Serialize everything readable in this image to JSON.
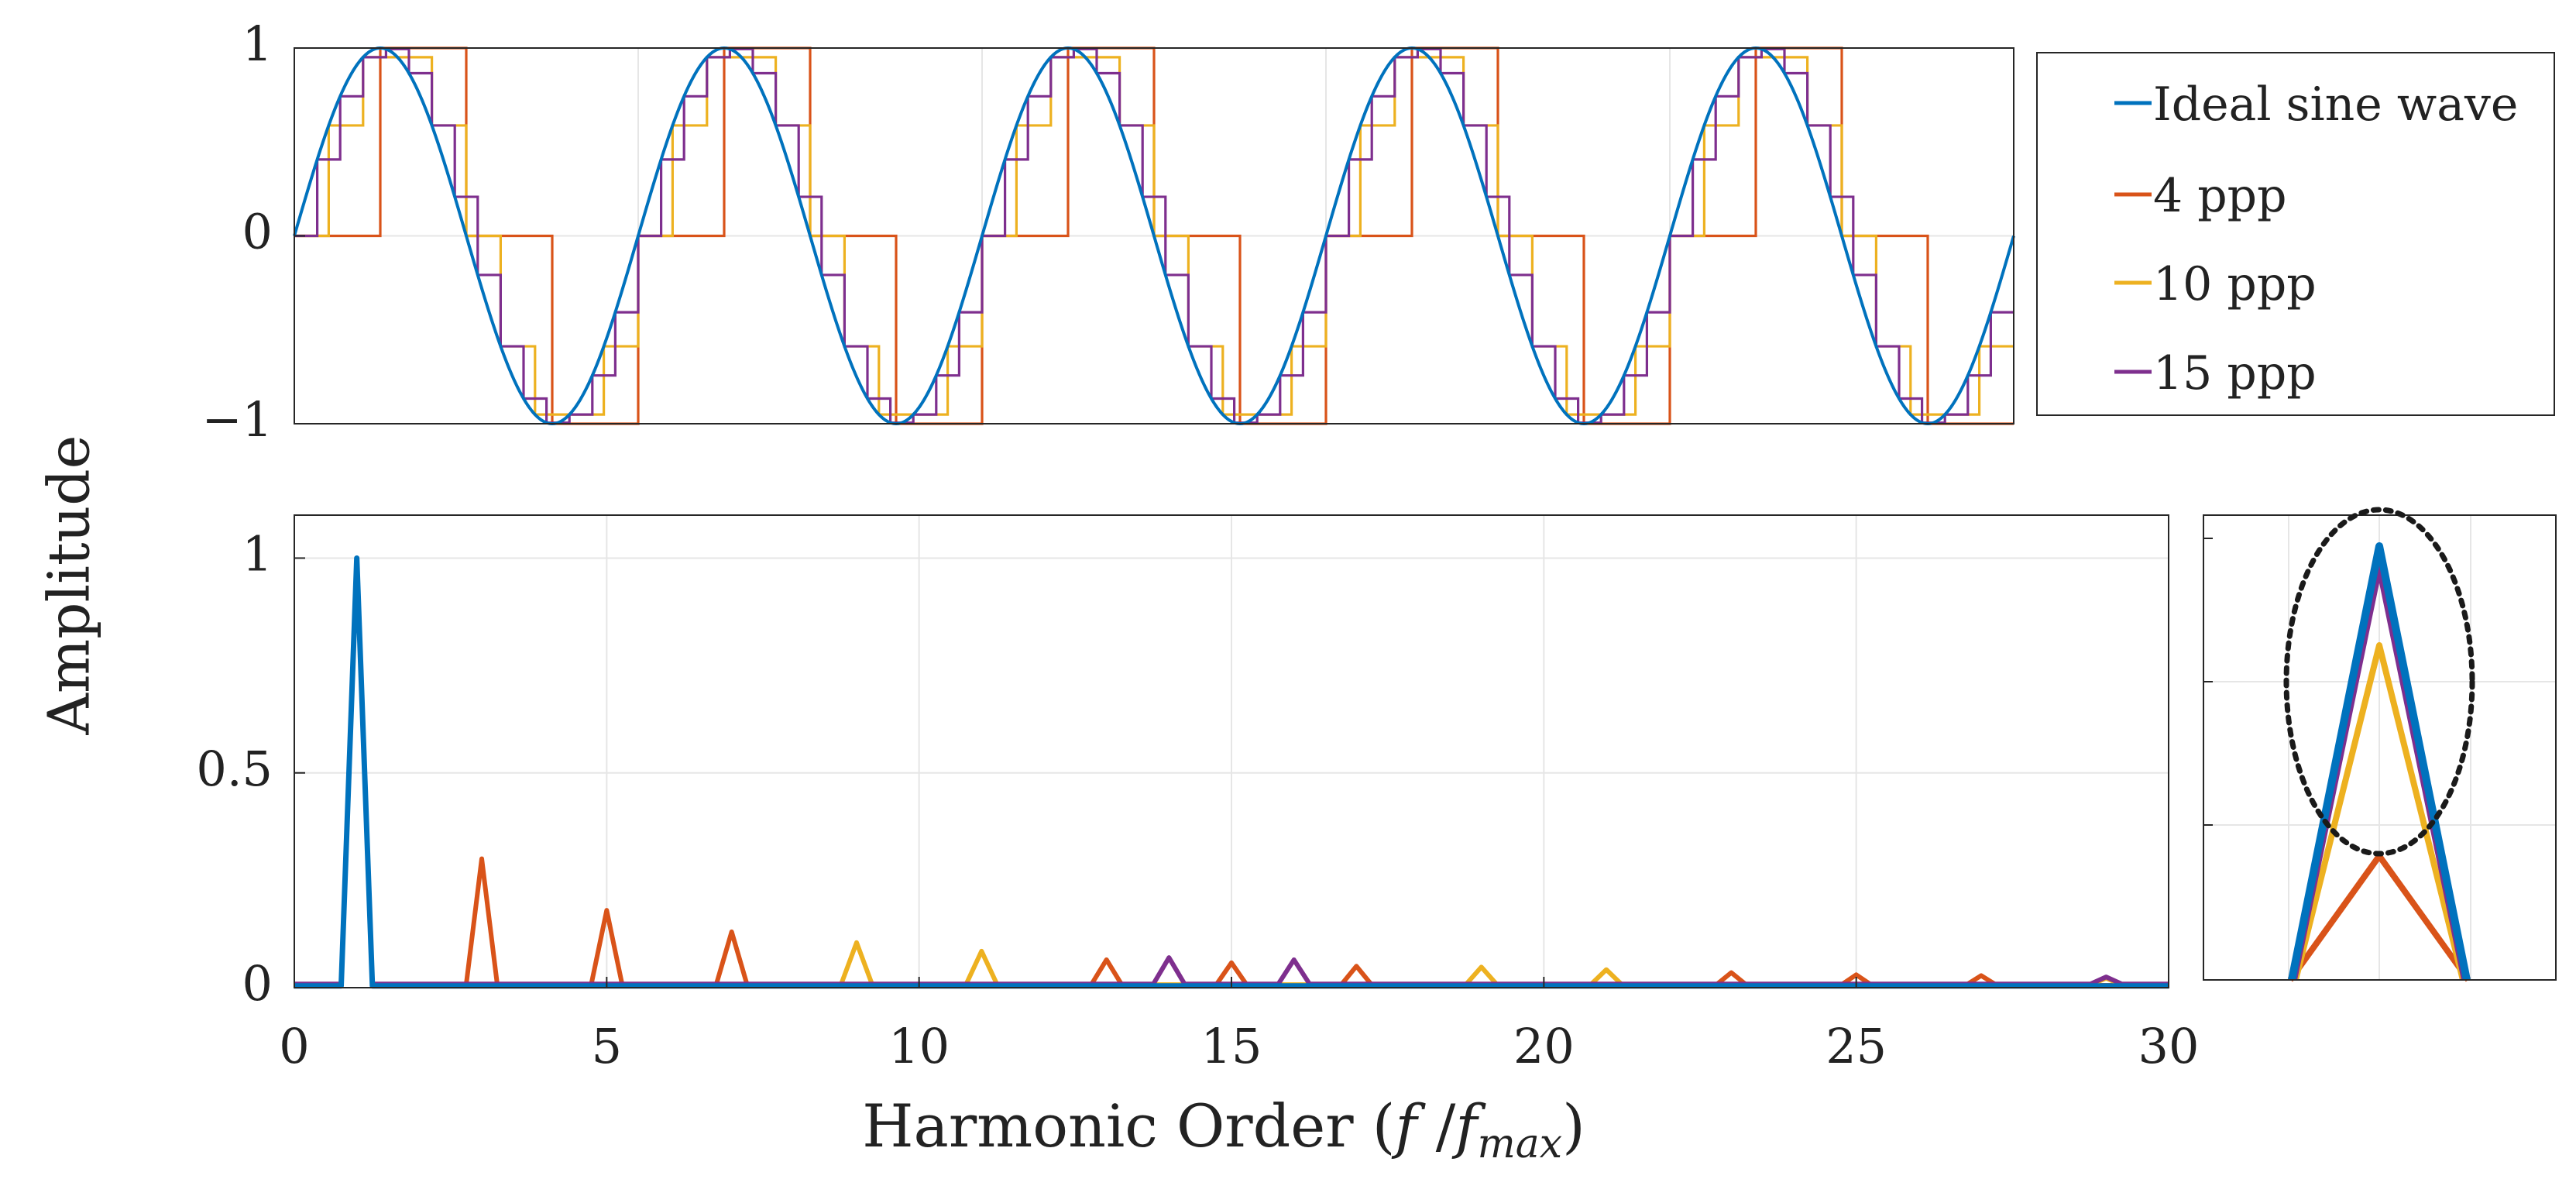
{
  "colors": {
    "ideal": "#0072BD",
    "ppp4": "#D95319",
    "ppp10": "#EDB120",
    "ppp15": "#7E2F8E"
  },
  "ylabel": "Amplitude",
  "xlabel": "Harmonic Order (",
  "xlabel_f": "f",
  "xlabel_slash": " /",
  "xlabel_fmax_f": "f",
  "xlabel_fmax_sub": "max",
  "xlabel_close": ")",
  "legend": {
    "items": [
      {
        "label": "Ideal sine wave",
        "color_key": "ideal"
      },
      {
        "label": "4 ppp",
        "color_key": "ppp4"
      },
      {
        "label": "10 ppp",
        "color_key": "ppp10"
      },
      {
        "label": "15 ppp",
        "color_key": "ppp15"
      }
    ]
  },
  "chart_data": [
    {
      "type": "line",
      "panel": "time-domain",
      "cycles": 5,
      "ylim": [
        -1,
        1
      ],
      "yticks": [
        -1,
        0,
        1
      ],
      "ytick_labels": [
        "−1",
        "0",
        "1"
      ],
      "series": [
        {
          "name": "Ideal sine wave",
          "color_key": "ideal",
          "kind": "sine"
        },
        {
          "name": "4 ppp",
          "color_key": "ppp4",
          "kind": "stairs",
          "points_per_period": 4
        },
        {
          "name": "10 ppp",
          "color_key": "ppp10",
          "kind": "stairs",
          "points_per_period": 10
        },
        {
          "name": "15 ppp",
          "color_key": "ppp15",
          "kind": "stairs",
          "points_per_period": 15
        }
      ],
      "grid": true
    },
    {
      "type": "line",
      "panel": "harmonic-spectrum",
      "xlim": [
        0,
        30
      ],
      "ylim": [
        0,
        1.1
      ],
      "xticks": [
        0,
        5,
        10,
        15,
        20,
        25,
        30
      ],
      "xtick_labels": [
        "0",
        "5",
        "10",
        "15",
        "20",
        "25",
        "30"
      ],
      "yticks": [
        0,
        0.5,
        1
      ],
      "ytick_labels": [
        "0",
        "0.5",
        "1"
      ],
      "grid": true,
      "series": [
        {
          "name": "4 ppp",
          "color_key": "ppp4",
          "x": [
            1,
            3,
            5,
            7,
            13,
            15,
            17,
            23,
            25,
            27
          ],
          "values": [
            1.0,
            0.3,
            0.18,
            0.13,
            0.065,
            0.058,
            0.05,
            0.035,
            0.03,
            0.028
          ]
        },
        {
          "name": "10 ppp",
          "color_key": "ppp10",
          "x": [
            1,
            9,
            11,
            19,
            21,
            29
          ],
          "values": [
            1.0,
            0.105,
            0.085,
            0.048,
            0.042,
            0.022
          ]
        },
        {
          "name": "15 ppp",
          "color_key": "ppp15",
          "x": [
            1,
            14,
            16,
            29
          ],
          "values": [
            1.0,
            0.07,
            0.065,
            0.025
          ]
        },
        {
          "name": "Ideal sine wave",
          "color_key": "ideal",
          "x": [
            1
          ],
          "values": [
            1.0
          ]
        }
      ]
    },
    {
      "type": "line",
      "panel": "zoom-inset",
      "peaks": [
        {
          "color_key": "ppp4",
          "value": 0.9
        },
        {
          "color_key": "ppp10",
          "value": 0.968
        },
        {
          "color_key": "ppp15",
          "value": 0.993
        },
        {
          "color_key": "ideal",
          "value": 1.0
        }
      ],
      "ylim": [
        0.86,
        1.01
      ],
      "grid": true,
      "annotation": "dotted-ellipse"
    }
  ]
}
